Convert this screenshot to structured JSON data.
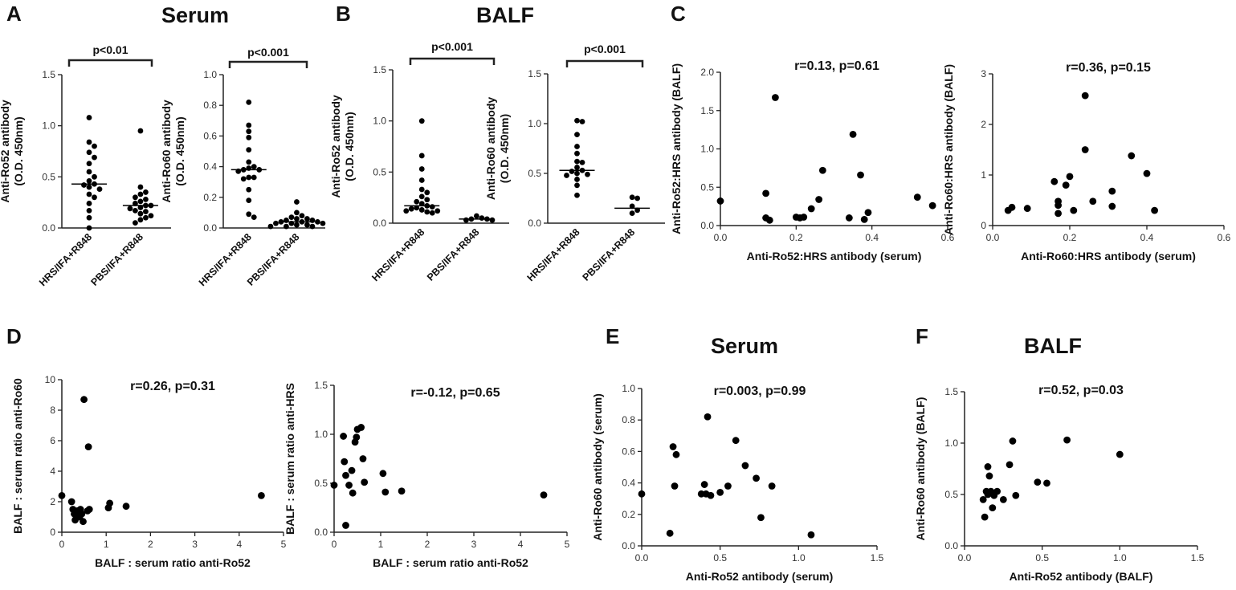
{
  "panel_letters": [
    "A",
    "B",
    "C",
    "D",
    "E",
    "F"
  ],
  "panel_titles": {
    "A": "Serum",
    "B": "BALF",
    "E": "Serum",
    "F": "BALF"
  },
  "colors": {
    "axis": "#222222",
    "point": "#000000",
    "median": "#000000"
  },
  "chart_data": [
    {
      "id": "A1",
      "type": "scatter",
      "subtype": "dot-strip",
      "ylabel": "Anti-Ro52 antibody\n(O.D. 450nm)",
      "ylim": [
        0,
        1.5
      ],
      "yticks": [
        0,
        0.5,
        1.0,
        1.5
      ],
      "ytick_labels": [
        "0.0",
        "0.5",
        "1.0",
        "1.5"
      ],
      "categories": [
        "HRS/IFA+R848",
        "PBS/IFA+R848"
      ],
      "annotation": "p<0.01",
      "series": [
        {
          "name": "HRS/IFA+R848",
          "median": 0.43,
          "values": [
            1.08,
            0.84,
            0.8,
            0.74,
            0.69,
            0.63,
            0.55,
            0.5,
            0.46,
            0.43,
            0.42,
            0.4,
            0.38,
            0.33,
            0.3,
            0.24,
            0.17,
            0.1,
            0.0
          ]
        },
        {
          "name": "PBS/IFA+R848",
          "median": 0.22,
          "values": [
            0.95,
            0.4,
            0.35,
            0.33,
            0.3,
            0.28,
            0.26,
            0.24,
            0.22,
            0.22,
            0.2,
            0.19,
            0.17,
            0.16,
            0.14,
            0.12,
            0.1,
            0.08,
            0.05
          ]
        }
      ]
    },
    {
      "id": "A2",
      "type": "scatter",
      "subtype": "dot-strip",
      "ylabel": "Anti-Ro60 antibody\n(O.D. 450nm)",
      "ylim": [
        0,
        1.0
      ],
      "yticks": [
        0,
        0.2,
        0.4,
        0.6,
        0.8,
        1.0
      ],
      "ytick_labels": [
        "0.0",
        "0.2",
        "0.4",
        "0.6",
        "0.8",
        "1.0"
      ],
      "categories": [
        "HRS/IFA+R848",
        "PBS/IFA+R848"
      ],
      "annotation": "p<0.001",
      "series": [
        {
          "name": "HRS/IFA+R848",
          "median": 0.38,
          "values": [
            0.82,
            0.67,
            0.63,
            0.59,
            0.51,
            0.43,
            0.4,
            0.39,
            0.38,
            0.38,
            0.37,
            0.33,
            0.33,
            0.32,
            0.25,
            0.18,
            0.09,
            0.07
          ]
        },
        {
          "name": "PBS/IFA+R848",
          "median": 0.04,
          "values": [
            0.17,
            0.1,
            0.08,
            0.07,
            0.06,
            0.06,
            0.05,
            0.05,
            0.04,
            0.04,
            0.04,
            0.03,
            0.03,
            0.03,
            0.02,
            0.02,
            0.01,
            0.01,
            0.01
          ]
        }
      ]
    },
    {
      "id": "B1",
      "type": "scatter",
      "subtype": "dot-strip",
      "ylabel": "Anti-Ro52 antibody\n(O.D. 450nm)",
      "ylim": [
        0,
        1.5
      ],
      "yticks": [
        0,
        0.5,
        1.0,
        1.5
      ],
      "ytick_labels": [
        "0.0",
        "0.5",
        "1.0",
        "1.5"
      ],
      "categories": [
        "HRS/IFA+R848",
        "PBS/IFA+R848"
      ],
      "annotation": "p<0.001",
      "series": [
        {
          "name": "HRS/IFA+R848",
          "median": 0.17,
          "values": [
            1.0,
            0.66,
            0.53,
            0.42,
            0.33,
            0.3,
            0.26,
            0.23,
            0.21,
            0.19,
            0.17,
            0.16,
            0.15,
            0.14,
            0.13,
            0.12,
            0.12,
            0.11,
            0.1
          ]
        },
        {
          "name": "PBS/IFA+R848",
          "median": 0.04,
          "values": [
            0.07,
            0.05,
            0.04,
            0.04,
            0.03,
            0.03
          ]
        }
      ]
    },
    {
      "id": "B2",
      "type": "scatter",
      "subtype": "dot-strip",
      "ylabel": "Anti-Ro60 antibody\n(O.D. 450nm)",
      "ylim": [
        0,
        1.5
      ],
      "yticks": [
        0,
        0.5,
        1.0,
        1.5
      ],
      "ytick_labels": [
        "0.0",
        "0.5",
        "1.0",
        "1.5"
      ],
      "categories": [
        "HRS/IFA+R848",
        "PBS/IFA+R848"
      ],
      "annotation": "p<0.001",
      "series": [
        {
          "name": "HRS/IFA+R848",
          "median": 0.53,
          "values": [
            1.03,
            1.02,
            0.89,
            0.77,
            0.7,
            0.62,
            0.61,
            0.56,
            0.53,
            0.52,
            0.5,
            0.49,
            0.48,
            0.44,
            0.38,
            0.28
          ]
        },
        {
          "name": "PBS/IFA+R848",
          "median": 0.15,
          "values": [
            0.26,
            0.25,
            0.17,
            0.13,
            0.1
          ]
        }
      ]
    },
    {
      "id": "C1",
      "type": "scatter",
      "xlabel": "Anti-Ro52:HRS antibody (serum)",
      "ylabel": "Anti-Ro52:HRS antibody (BALF)",
      "xlim": [
        0,
        0.6
      ],
      "ylim": [
        0,
        2.0
      ],
      "xticks": [
        0,
        0.2,
        0.4,
        0.6
      ],
      "xtick_labels": [
        "0.0",
        "0.2",
        "0.4",
        "0.6"
      ],
      "yticks": [
        0,
        0.5,
        1.0,
        1.5,
        2.0
      ],
      "ytick_labels": [
        "0.0",
        "0.5",
        "1.0",
        "1.5",
        "2.0"
      ],
      "annotation": "r=0.13, p=0.61",
      "points": [
        [
          0.0,
          0.32
        ],
        [
          0.12,
          0.42
        ],
        [
          0.12,
          0.1
        ],
        [
          0.13,
          0.07
        ],
        [
          0.145,
          1.67
        ],
        [
          0.2,
          0.11
        ],
        [
          0.21,
          0.1
        ],
        [
          0.22,
          0.11
        ],
        [
          0.24,
          0.22
        ],
        [
          0.26,
          0.34
        ],
        [
          0.27,
          0.72
        ],
        [
          0.34,
          0.1
        ],
        [
          0.35,
          1.19
        ],
        [
          0.37,
          0.66
        ],
        [
          0.38,
          0.08
        ],
        [
          0.39,
          0.17
        ],
        [
          0.52,
          0.37
        ],
        [
          0.56,
          0.26
        ]
      ]
    },
    {
      "id": "C2",
      "type": "scatter",
      "xlabel": "Anti-Ro60:HRS antibody (serum)",
      "ylabel": "Anti-Ro60:HRS antibody (BALF)",
      "xlim": [
        0,
        0.6
      ],
      "ylim": [
        0,
        3
      ],
      "xticks": [
        0,
        0.2,
        0.4,
        0.6
      ],
      "xtick_labels": [
        "0.0",
        "0.2",
        "0.4",
        "0.6"
      ],
      "yticks": [
        0,
        1,
        2,
        3
      ],
      "ytick_labels": [
        "0",
        "1",
        "2",
        "3"
      ],
      "annotation": "r=0.36, p=0.15",
      "points": [
        [
          0.04,
          0.3
        ],
        [
          0.05,
          0.36
        ],
        [
          0.09,
          0.34
        ],
        [
          0.16,
          0.87
        ],
        [
          0.17,
          0.48
        ],
        [
          0.17,
          0.4
        ],
        [
          0.17,
          0.24
        ],
        [
          0.19,
          0.8
        ],
        [
          0.2,
          0.97
        ],
        [
          0.21,
          0.3
        ],
        [
          0.24,
          2.57
        ],
        [
          0.24,
          1.5
        ],
        [
          0.26,
          0.48
        ],
        [
          0.31,
          0.68
        ],
        [
          0.31,
          0.38
        ],
        [
          0.36,
          1.38
        ],
        [
          0.4,
          1.03
        ],
        [
          0.42,
          0.3
        ]
      ]
    },
    {
      "id": "D1",
      "type": "scatter",
      "xlabel": "BALF : serum ratio anti-Ro52",
      "ylabel": "BALF : serum ratio anti-Ro60",
      "xlim": [
        0,
        5
      ],
      "ylim": [
        0,
        10
      ],
      "xticks": [
        0,
        1,
        2,
        3,
        4,
        5
      ],
      "xtick_labels": [
        "0",
        "1",
        "2",
        "3",
        "4",
        "5"
      ],
      "yticks": [
        0,
        2,
        4,
        6,
        8,
        10
      ],
      "ytick_labels": [
        "0",
        "2",
        "4",
        "6",
        "8",
        "10"
      ],
      "annotation": "r=0.26, p=0.31",
      "points": [
        [
          0.0,
          2.4
        ],
        [
          0.22,
          2.0
        ],
        [
          0.25,
          1.5
        ],
        [
          0.28,
          1.2
        ],
        [
          0.3,
          0.8
        ],
        [
          0.35,
          1.4
        ],
        [
          0.4,
          1.0
        ],
        [
          0.42,
          1.5
        ],
        [
          0.45,
          1.2
        ],
        [
          0.48,
          0.7
        ],
        [
          0.5,
          8.7
        ],
        [
          0.58,
          1.4
        ],
        [
          0.6,
          5.6
        ],
        [
          0.62,
          1.5
        ],
        [
          1.05,
          1.6
        ],
        [
          1.08,
          1.9
        ],
        [
          1.45,
          1.7
        ],
        [
          4.5,
          2.4
        ]
      ]
    },
    {
      "id": "D2",
      "type": "scatter",
      "xlabel": "BALF : serum ratio anti-Ro52",
      "ylabel": "BALF : serum ratio anti-HRS",
      "xlim": [
        0,
        5
      ],
      "ylim": [
        0,
        1.5
      ],
      "xticks": [
        0,
        1,
        2,
        3,
        4,
        5
      ],
      "xtick_labels": [
        "0",
        "1",
        "2",
        "3",
        "4",
        "5"
      ],
      "yticks": [
        0,
        0.5,
        1.0,
        1.5
      ],
      "ytick_labels": [
        "0.0",
        "0.5",
        "1.0",
        "1.5"
      ],
      "annotation": "r=-0.12, p=0.65",
      "points": [
        [
          0.0,
          0.48
        ],
        [
          0.2,
          0.98
        ],
        [
          0.22,
          0.72
        ],
        [
          0.25,
          0.58
        ],
        [
          0.25,
          0.07
        ],
        [
          0.32,
          0.48
        ],
        [
          0.38,
          0.63
        ],
        [
          0.4,
          0.4
        ],
        [
          0.45,
          0.92
        ],
        [
          0.48,
          0.97
        ],
        [
          0.5,
          1.05
        ],
        [
          0.58,
          1.07
        ],
        [
          0.62,
          0.75
        ],
        [
          0.65,
          0.51
        ],
        [
          1.05,
          0.6
        ],
        [
          1.1,
          0.41
        ],
        [
          1.45,
          0.42
        ],
        [
          4.5,
          0.38
        ]
      ]
    },
    {
      "id": "E",
      "type": "scatter",
      "xlabel": "Anti-Ro52 antibody (serum)",
      "ylabel": "Anti-Ro60 antibody (serum)",
      "xlim": [
        0,
        1.5
      ],
      "ylim": [
        0,
        1.0
      ],
      "xticks": [
        0,
        0.5,
        1.0,
        1.5
      ],
      "xtick_labels": [
        "0.0",
        "0.5",
        "1.0",
        "1.5"
      ],
      "yticks": [
        0,
        0.2,
        0.4,
        0.6,
        0.8,
        1.0
      ],
      "ytick_labels": [
        "0.0",
        "0.2",
        "0.4",
        "0.6",
        "0.8",
        "1.0"
      ],
      "annotation": "r=0.003, p=0.99",
      "points": [
        [
          0.0,
          0.33
        ],
        [
          0.18,
          0.08
        ],
        [
          0.2,
          0.63
        ],
        [
          0.22,
          0.58
        ],
        [
          0.21,
          0.38
        ],
        [
          0.38,
          0.33
        ],
        [
          0.4,
          0.39
        ],
        [
          0.41,
          0.33
        ],
        [
          0.42,
          0.82
        ],
        [
          0.44,
          0.32
        ],
        [
          0.5,
          0.34
        ],
        [
          0.55,
          0.38
        ],
        [
          0.6,
          0.67
        ],
        [
          0.66,
          0.51
        ],
        [
          0.73,
          0.43
        ],
        [
          0.76,
          0.18
        ],
        [
          0.83,
          0.38
        ],
        [
          1.08,
          0.07
        ]
      ]
    },
    {
      "id": "F",
      "type": "scatter",
      "xlabel": "Anti-Ro52 antibody (BALF)",
      "ylabel": "Anti-Ro60 antibody (BALF)",
      "xlim": [
        0,
        1.5
      ],
      "ylim": [
        0,
        1.5
      ],
      "xticks": [
        0,
        0.5,
        1.0,
        1.5
      ],
      "xtick_labels": [
        "0.0",
        "0.5",
        "1.0",
        "1.5"
      ],
      "yticks": [
        0,
        0.5,
        1.0,
        1.5
      ],
      "ytick_labels": [
        "0.0",
        "0.5",
        "1.0",
        "1.5"
      ],
      "annotation": "r=0.52, p=0.03",
      "points": [
        [
          0.12,
          0.45
        ],
        [
          0.13,
          0.28
        ],
        [
          0.14,
          0.53
        ],
        [
          0.15,
          0.77
        ],
        [
          0.15,
          0.5
        ],
        [
          0.16,
          0.68
        ],
        [
          0.17,
          0.53
        ],
        [
          0.18,
          0.37
        ],
        [
          0.19,
          0.49
        ],
        [
          0.21,
          0.53
        ],
        [
          0.25,
          0.45
        ],
        [
          0.29,
          0.79
        ],
        [
          0.31,
          1.02
        ],
        [
          0.33,
          0.49
        ],
        [
          0.47,
          0.62
        ],
        [
          0.53,
          0.61
        ],
        [
          0.66,
          1.03
        ],
        [
          1.0,
          0.89
        ]
      ]
    }
  ]
}
